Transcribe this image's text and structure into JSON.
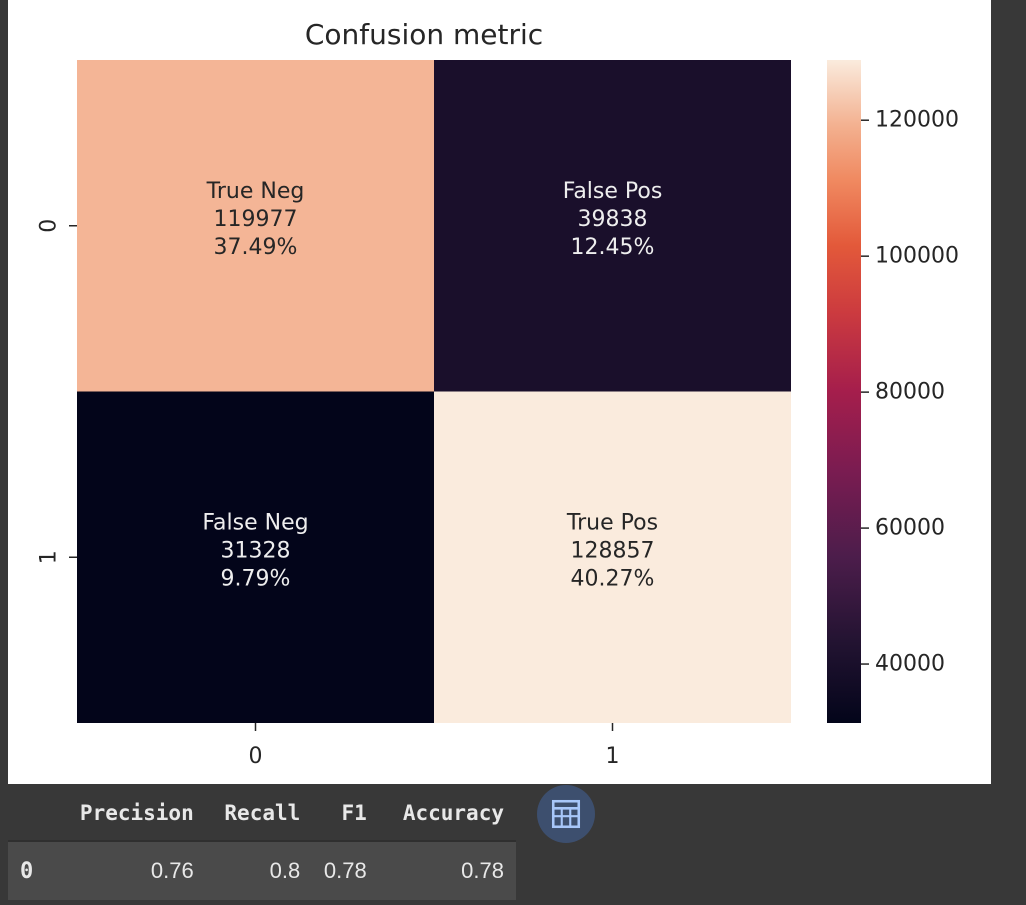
{
  "chart_data": {
    "type": "heatmap",
    "title": "Confusion metric",
    "x_ticks": [
      "0",
      "1"
    ],
    "y_ticks": [
      "0",
      "1"
    ],
    "cells": [
      [
        {
          "label": "True Neg",
          "count": "119977",
          "percent": "37.49%",
          "value": 119977
        },
        {
          "label": "False Pos",
          "count": "39838",
          "percent": "12.45%",
          "value": 39838
        }
      ],
      [
        {
          "label": "False Neg",
          "count": "31328",
          "percent": "9.79%",
          "value": 31328
        },
        {
          "label": "True Pos",
          "count": "128857",
          "percent": "40.27%",
          "value": 128857
        }
      ]
    ],
    "colorbar": {
      "min": 31328,
      "max": 128857,
      "ticks": [
        40000,
        60000,
        80000,
        100000,
        120000
      ],
      "colormap": "rocket"
    }
  },
  "metrics_table": {
    "columns": [
      "",
      "Precision",
      "Recall",
      "F1",
      "Accuracy"
    ],
    "rows": [
      [
        "0",
        "0.76",
        "0.8",
        "0.78",
        "0.78"
      ]
    ]
  },
  "table_button_icon": "table-icon",
  "colors": {
    "page_background": "#383838",
    "figure_background": "#ffffff"
  }
}
